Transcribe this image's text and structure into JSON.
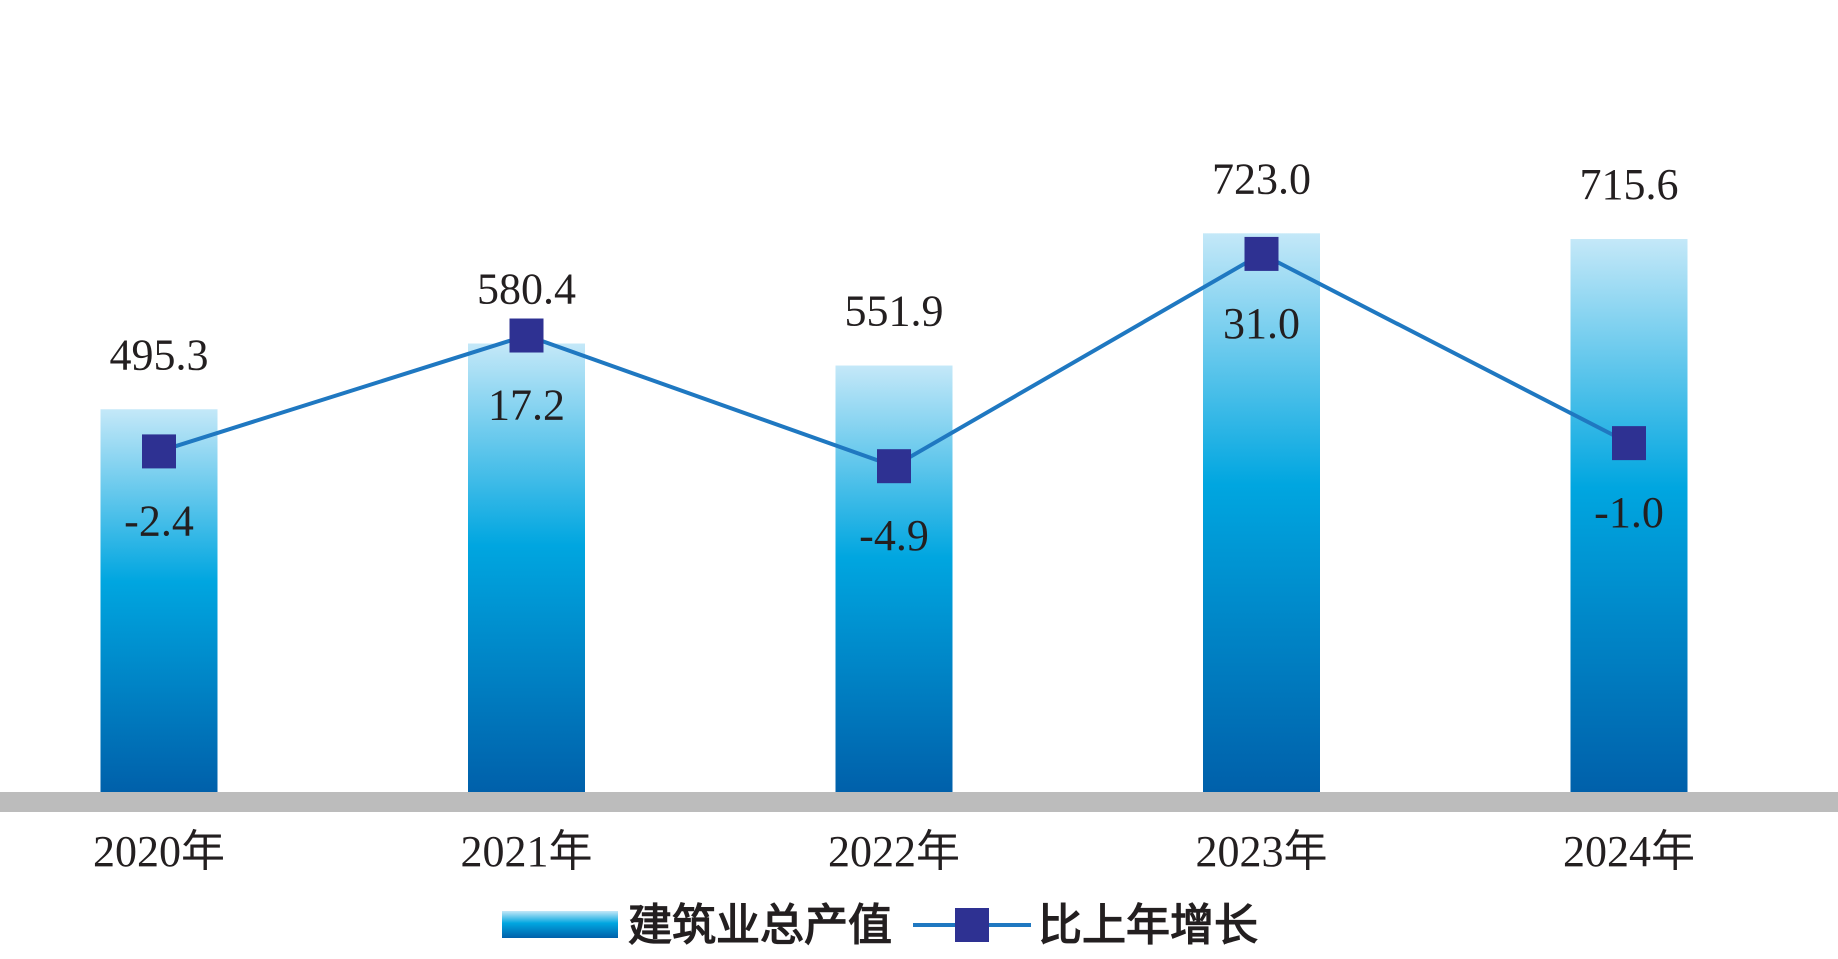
{
  "chart_data": {
    "type": "bar",
    "categories": [
      "2020年",
      "2021年",
      "2022年",
      "2023年",
      "2024年"
    ],
    "series": [
      {
        "name": "建筑业总产值",
        "type": "bar",
        "values": [
          495.3,
          580.4,
          551.9,
          723.0,
          715.6
        ],
        "labels": [
          "495.3",
          "580.4",
          "551.9",
          "723.0",
          "715.6"
        ]
      },
      {
        "name": "比上年增长",
        "type": "line",
        "values": [
          -2.4,
          17.2,
          -4.9,
          31.0,
          -1.0
        ],
        "labels": [
          "-2.4",
          "17.2",
          "-4.9",
          "31.0",
          "-1.0"
        ]
      }
    ],
    "bar_ylim": [
      0,
      880
    ],
    "line_ylim": [
      -60,
      55
    ],
    "legend": "bottom-center",
    "grid": false,
    "colors": {
      "bar_top": "#c4e8f8",
      "bar_mid": "#00a6e0",
      "bar_bottom": "#0060aa",
      "line": "#1f78c1",
      "marker": "#2e3192",
      "axis": "#bcbcbc",
      "text": "#231f20"
    }
  }
}
